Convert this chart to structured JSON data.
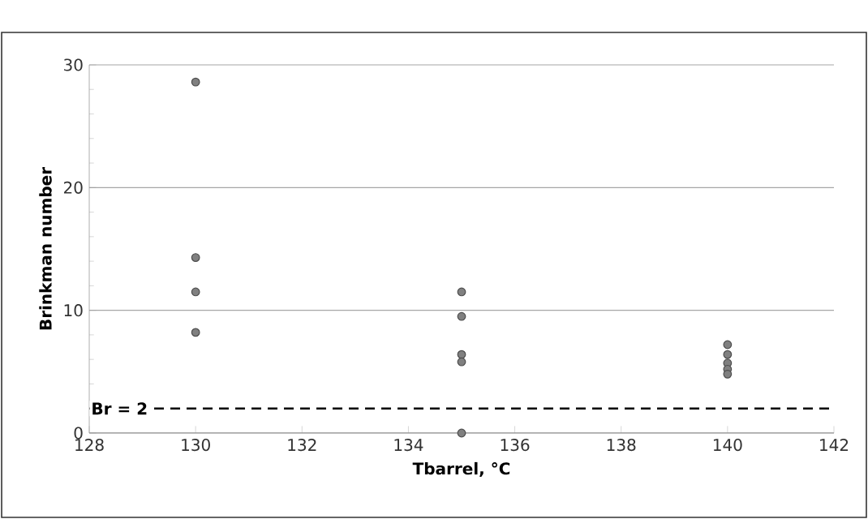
{
  "chart_data": {
    "type": "scatter",
    "xlabel": "Tbarrel, °C",
    "ylabel": "Brinkman number",
    "x": [
      130,
      130,
      130,
      130,
      135,
      135,
      135,
      135,
      135,
      140,
      140,
      140,
      140,
      140
    ],
    "values": [
      28.6,
      14.3,
      11.5,
      8.2,
      11.5,
      9.5,
      6.4,
      5.8,
      0,
      7.2,
      6.4,
      5.7,
      5.2,
      4.8
    ],
    "color": "#808080",
    "marker": "circle",
    "xlim": [
      128,
      142
    ],
    "xticks": [
      128,
      130,
      132,
      134,
      136,
      138,
      140,
      142
    ],
    "ylim": [
      0,
      30
    ],
    "yticks": [
      0,
      10,
      20,
      30
    ],
    "grid": "y",
    "ref_lines": [
      {
        "axis": "y",
        "value": 2,
        "label": "Br = 2",
        "color": "#000000",
        "line_style": "dashed"
      }
    ]
  }
}
